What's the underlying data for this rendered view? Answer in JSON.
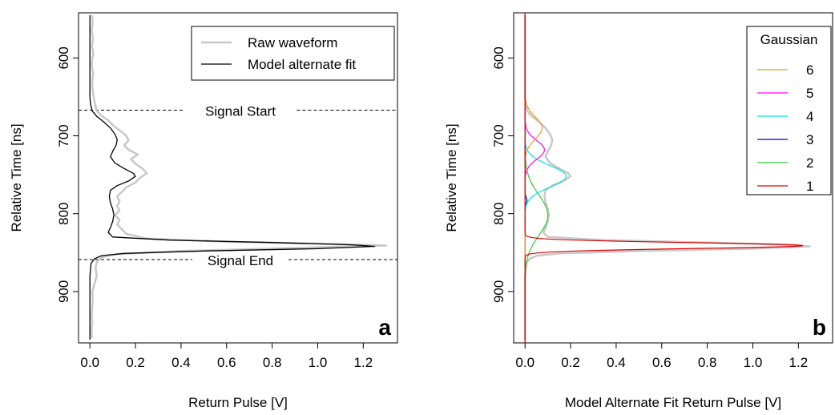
{
  "chart_data": [
    {
      "type": "line",
      "panel_label": "a",
      "xlabel": "Return Pulse [V]",
      "ylabel": "Relative Time [ns]",
      "xlim": [
        -0.05,
        1.35
      ],
      "ylim": [
        966,
        542
      ],
      "y_reversed": true,
      "x_ticks": [
        0.0,
        0.2,
        0.4,
        0.6,
        0.8,
        1.0,
        1.2
      ],
      "x_tick_labels": [
        "0.0",
        "0.2",
        "0.4",
        "0.6",
        "0.8",
        "1.0",
        "1.2"
      ],
      "y_ticks": [
        600,
        700,
        800,
        900
      ],
      "y_tick_labels": [
        "600",
        "700",
        "800",
        "900"
      ],
      "legend": {
        "position": "top-right",
        "entries": [
          {
            "label": "Raw waveform",
            "color": "#c8c8c8",
            "width": 2.5
          },
          {
            "label": "Model alternate fit",
            "color": "#000000",
            "width": 1.3
          }
        ]
      },
      "reference_lines": [
        {
          "label": "Signal Start",
          "y": 667
        },
        {
          "label": "Signal End",
          "y": 859
        }
      ],
      "series": [
        {
          "name": "Raw waveform",
          "color": "#c8c8c8",
          "points": [
            [
              0.01,
              545
            ],
            [
              0.012,
              555
            ],
            [
              0.008,
              565
            ],
            [
              0.013,
              575
            ],
            [
              0.009,
              585
            ],
            [
              0.015,
              595
            ],
            [
              0.01,
              600
            ],
            [
              0.008,
              610
            ],
            [
              0.014,
              620
            ],
            [
              0.01,
              630
            ],
            [
              0.012,
              640
            ],
            [
              0.015,
              648
            ],
            [
              0.02,
              656
            ],
            [
              0.025,
              662
            ],
            [
              0.03,
              668
            ],
            [
              0.05,
              674
            ],
            [
              0.08,
              680
            ],
            [
              0.1,
              686
            ],
            [
              0.13,
              693
            ],
            [
              0.16,
              700
            ],
            [
              0.17,
              706
            ],
            [
              0.15,
              712
            ],
            [
              0.17,
              718
            ],
            [
              0.21,
              724
            ],
            [
              0.18,
              730
            ],
            [
              0.2,
              736
            ],
            [
              0.23,
              742
            ],
            [
              0.25,
              748
            ],
            [
              0.22,
              754
            ],
            [
              0.2,
              760
            ],
            [
              0.16,
              766
            ],
            [
              0.14,
              772
            ],
            [
              0.12,
              778
            ],
            [
              0.13,
              784
            ],
            [
              0.12,
              790
            ],
            [
              0.13,
              796
            ],
            [
              0.11,
              802
            ],
            [
              0.13,
              808
            ],
            [
              0.12,
              814
            ],
            [
              0.14,
              820
            ],
            [
              0.16,
              826
            ],
            [
              0.25,
              832
            ],
            [
              0.6,
              836
            ],
            [
              1.1,
              839
            ],
            [
              1.3,
              841
            ],
            [
              0.9,
              844
            ],
            [
              0.4,
              848
            ],
            [
              0.12,
              852
            ],
            [
              0.05,
              856
            ],
            [
              0.03,
              862
            ],
            [
              0.025,
              870
            ],
            [
              0.03,
              880
            ],
            [
              0.02,
              890
            ],
            [
              0.01,
              900
            ],
            [
              0.012,
              910
            ],
            [
              0.01,
              920
            ],
            [
              0.008,
              930
            ],
            [
              0.01,
              940
            ],
            [
              0.007,
              950
            ],
            [
              0.009,
              960
            ]
          ]
        },
        {
          "name": "Model alternate fit",
          "color": "#000000",
          "points": [
            [
              0.0,
              545
            ],
            [
              0.0,
              580
            ],
            [
              0.0,
              620
            ],
            [
              0.0,
              650
            ],
            [
              0.003,
              660
            ],
            [
              0.01,
              668
            ],
            [
              0.03,
              675
            ],
            [
              0.06,
              682
            ],
            [
              0.09,
              690
            ],
            [
              0.11,
              698
            ],
            [
              0.12,
              705
            ],
            [
              0.115,
              712
            ],
            [
              0.1,
              720
            ],
            [
              0.09,
              727
            ],
            [
              0.11,
              735
            ],
            [
              0.15,
              742
            ],
            [
              0.19,
              748
            ],
            [
              0.2,
              752
            ],
            [
              0.17,
              758
            ],
            [
              0.12,
              764
            ],
            [
              0.09,
              770
            ],
            [
              0.085,
              778
            ],
            [
              0.09,
              786
            ],
            [
              0.1,
              794
            ],
            [
              0.105,
              802
            ],
            [
              0.1,
              810
            ],
            [
              0.09,
              818
            ],
            [
              0.08,
              824
            ],
            [
              0.1,
              830
            ],
            [
              0.35,
              834
            ],
            [
              0.8,
              837
            ],
            [
              1.15,
              840
            ],
            [
              1.25,
              842
            ],
            [
              1.0,
              845
            ],
            [
              0.5,
              848
            ],
            [
              0.15,
              851
            ],
            [
              0.05,
              854
            ],
            [
              0.02,
              858
            ],
            [
              0.005,
              864
            ],
            [
              0.0,
              880
            ],
            [
              0.0,
              920
            ],
            [
              0.0,
              962
            ]
          ]
        }
      ]
    },
    {
      "type": "line",
      "panel_label": "b",
      "xlabel": "Model Alternate Fit Return Pulse [V]",
      "ylabel": "Relative Time [ns]",
      "xlim": [
        -0.05,
        1.35
      ],
      "ylim": [
        966,
        542
      ],
      "y_reversed": true,
      "x_ticks": [
        0.0,
        0.2,
        0.4,
        0.6,
        0.8,
        1.0,
        1.2
      ],
      "x_tick_labels": [
        "0.0",
        "0.2",
        "0.4",
        "0.6",
        "0.8",
        "1.0",
        "1.2"
      ],
      "y_ticks": [
        600,
        700,
        800,
        900
      ],
      "y_tick_labels": [
        "600",
        "700",
        "800",
        "900"
      ],
      "legend": {
        "title": "Gaussian",
        "position": "top-right",
        "entries": [
          {
            "label": "6",
            "color": "#e8a020"
          },
          {
            "label": "5",
            "color": "#ff00ff"
          },
          {
            "label": "4",
            "color": "#00e5e5"
          },
          {
            "label": "3",
            "color": "#0000cc"
          },
          {
            "label": "2",
            "color": "#33cc33"
          },
          {
            "label": "1",
            "color": "#dd0000"
          }
        ]
      },
      "background_series": {
        "color": "#c8c8c8",
        "points": [
          [
            0.0,
            545
          ],
          [
            0.0,
            580
          ],
          [
            0.0,
            620
          ],
          [
            0.0,
            650
          ],
          [
            0.003,
            660
          ],
          [
            0.01,
            668
          ],
          [
            0.03,
            675
          ],
          [
            0.06,
            682
          ],
          [
            0.09,
            690
          ],
          [
            0.11,
            698
          ],
          [
            0.12,
            705
          ],
          [
            0.115,
            712
          ],
          [
            0.1,
            720
          ],
          [
            0.09,
            727
          ],
          [
            0.11,
            735
          ],
          [
            0.15,
            742
          ],
          [
            0.19,
            748
          ],
          [
            0.2,
            752
          ],
          [
            0.17,
            758
          ],
          [
            0.12,
            764
          ],
          [
            0.09,
            770
          ],
          [
            0.085,
            778
          ],
          [
            0.09,
            786
          ],
          [
            0.1,
            794
          ],
          [
            0.105,
            802
          ],
          [
            0.1,
            810
          ],
          [
            0.09,
            818
          ],
          [
            0.08,
            824
          ],
          [
            0.1,
            830
          ],
          [
            0.35,
            834
          ],
          [
            0.8,
            837
          ],
          [
            1.15,
            840
          ],
          [
            1.25,
            842
          ],
          [
            1.0,
            845
          ],
          [
            0.5,
            848
          ],
          [
            0.15,
            851
          ],
          [
            0.05,
            854
          ],
          [
            0.02,
            858
          ],
          [
            0.005,
            864
          ],
          [
            0.0,
            880
          ],
          [
            0.0,
            920
          ],
          [
            0.0,
            962
          ]
        ]
      },
      "gaussians": [
        {
          "name": "6",
          "color": "#e8a020",
          "amplitude": 0.075,
          "center": 690,
          "sigma": 14
        },
        {
          "name": "5",
          "color": "#ff00ff",
          "amplitude": 0.085,
          "center": 718,
          "sigma": 12
        },
        {
          "name": "4",
          "color": "#00e5e5",
          "amplitude": 0.18,
          "center": 752,
          "sigma": 14
        },
        {
          "name": "3",
          "color": "#0000cc",
          "amplitude": 0.008,
          "center": 783,
          "sigma": 4
        },
        {
          "name": "2",
          "color": "#33cc33",
          "amplitude": 0.1,
          "center": 802,
          "sigma": 26
        },
        {
          "name": "1",
          "color": "#dd0000",
          "amplitude": 1.22,
          "center": 841,
          "sigma": 3.8
        }
      ]
    }
  ]
}
